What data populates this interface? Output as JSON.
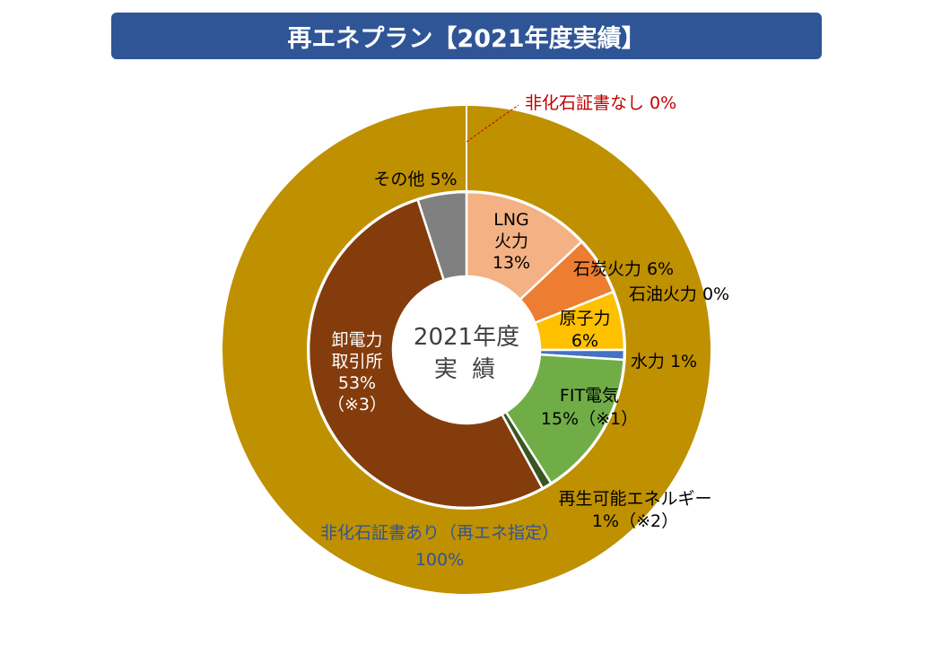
{
  "title": "再エネプラン【2021年度実績】",
  "chart_data": {
    "type": "donut",
    "center_label": [
      "2021年度",
      "実 績"
    ],
    "outer_ring": [
      {
        "label": "非化石証書なし",
        "value": 0,
        "value_text": "0%",
        "color": "#c00000"
      },
      {
        "label": "非化石証書あり（再エネ指定）",
        "value": 100,
        "value_text": "100%",
        "color": "#bf9000"
      }
    ],
    "inner_ring": [
      {
        "label": "LNG火力",
        "value": 13,
        "value_text": "13%",
        "color": "#f4b183"
      },
      {
        "label": "石炭火力",
        "value": 6,
        "value_text": "6%",
        "color": "#ed7d31"
      },
      {
        "label": "石油火力",
        "value": 0,
        "value_text": "0%",
        "color": "#ffe699"
      },
      {
        "label": "原子力",
        "value": 6,
        "value_text": "6%",
        "color": "#ffc000"
      },
      {
        "label": "水力",
        "value": 1,
        "value_text": "1%",
        "color": "#4472c4"
      },
      {
        "label": "FIT電気",
        "value": 15,
        "value_text": "15%（※1）",
        "color": "#70ad47"
      },
      {
        "label": "再生可能エネルギー",
        "value": 1,
        "value_text": "1%（※2）",
        "color": "#375623"
      },
      {
        "label": "卸電力取引所",
        "value": 53,
        "value_text": "53%（※3）",
        "color": "#843c0c"
      },
      {
        "label": "その他",
        "value": 5,
        "value_text": "5%",
        "color": "#808080"
      }
    ],
    "data_labels": [
      {
        "lines": [
          "非化石証書なし  0%"
        ],
        "color": "#c00000"
      },
      {
        "lines": [
          "非化石証書あり（再エネ指定）",
          "100%"
        ],
        "color": "#2f5597"
      },
      {
        "lines": [
          "LNG",
          "火力",
          "13%"
        ],
        "color": "#000000"
      },
      {
        "lines": [
          "石炭火力 6%"
        ],
        "color": "#000000"
      },
      {
        "lines": [
          "石油火力 0%"
        ],
        "color": "#000000"
      },
      {
        "lines": [
          "原子力",
          "6%"
        ],
        "color": "#000000"
      },
      {
        "lines": [
          "水力 1%"
        ],
        "color": "#000000"
      },
      {
        "lines": [
          "FIT電気",
          "15%（※1）"
        ],
        "color": "#000000"
      },
      {
        "lines": [
          "再生可能エネルギー",
          "1%（※2）"
        ],
        "color": "#000000"
      },
      {
        "lines": [
          "卸電力",
          "取引所",
          "53%",
          "（※3）"
        ],
        "color": "#ffffff"
      },
      {
        "lines": [
          "その他 5%"
        ],
        "color": "#000000"
      }
    ]
  }
}
